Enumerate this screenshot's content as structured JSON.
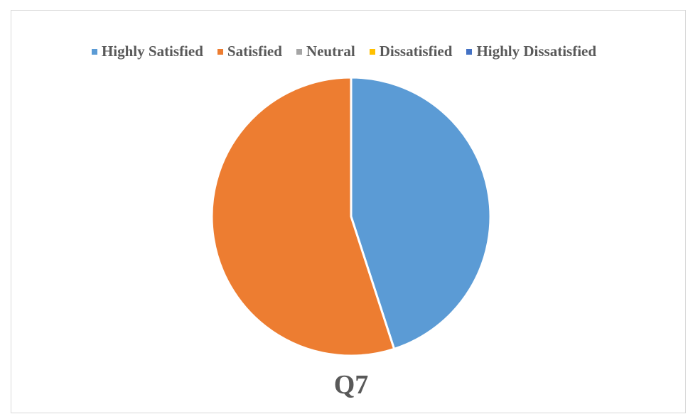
{
  "chart_data": {
    "type": "pie",
    "title": "Q7",
    "categories": [
      "Highly Satisfied",
      "Satisfied",
      "Neutral",
      "Dissatisfied",
      "Highly Dissatisfied"
    ],
    "values": [
      45,
      55,
      0,
      0,
      0
    ],
    "colors": [
      "#5b9bd5",
      "#ed7d31",
      "#a5a5a5",
      "#ffc000",
      "#4472c4"
    ],
    "legend_position": "top"
  }
}
